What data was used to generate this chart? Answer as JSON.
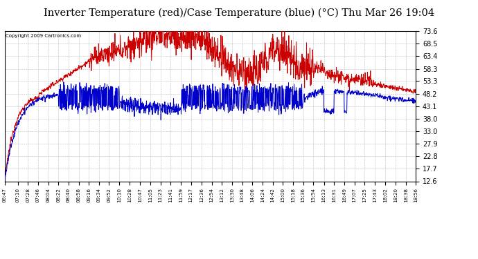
{
  "title": "Inverter Temperature (red)/Case Temperature (blue) (°C) Thu Mar 26 19:04",
  "copyright": "Copyright 2009 Cartronics.com",
  "yticks": [
    12.6,
    17.7,
    22.8,
    27.9,
    33.0,
    38.0,
    43.1,
    48.2,
    53.3,
    58.3,
    63.4,
    68.5,
    73.6
  ],
  "ylim": [
    12.6,
    73.6
  ],
  "background_color": "#ffffff",
  "grid_color": "#bbbbbb",
  "red_color": "#cc0000",
  "blue_color": "#0000cc",
  "title_fontsize": 10.5,
  "xtick_labels": [
    "06:47",
    "07:10",
    "07:28",
    "07:46",
    "08:04",
    "08:22",
    "08:40",
    "08:58",
    "09:16",
    "09:34",
    "09:52",
    "10:10",
    "10:28",
    "10:47",
    "11:05",
    "11:23",
    "11:41",
    "11:59",
    "12:17",
    "12:36",
    "12:54",
    "13:12",
    "13:30",
    "13:48",
    "14:06",
    "14:24",
    "14:42",
    "15:00",
    "15:18",
    "15:36",
    "15:54",
    "16:13",
    "16:31",
    "16:49",
    "17:07",
    "17:25",
    "17:43",
    "18:02",
    "18:20",
    "18:38",
    "18:56"
  ]
}
